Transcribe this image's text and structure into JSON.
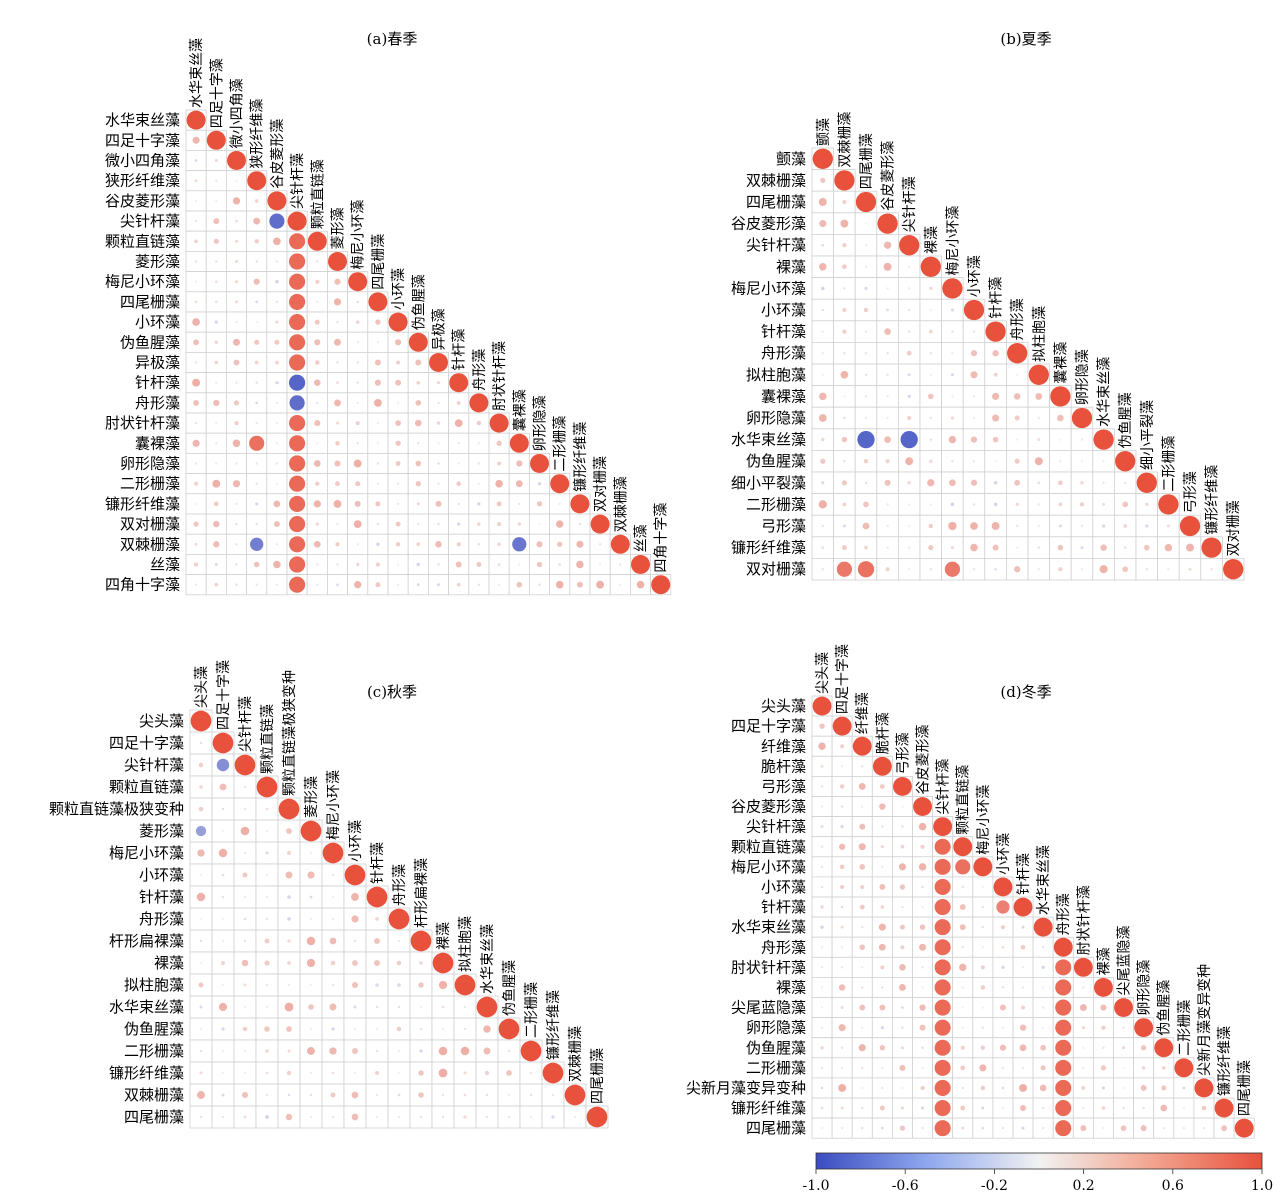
{
  "chart_data": [
    {
      "type": "heatmap",
      "title": "(a)春季",
      "labels": [
        "水华束丝藻",
        "四足十字藻",
        "微小四角藻",
        "狭形纤维藻",
        "谷皮菱形藻",
        "尖针杆藻",
        "颗粒直链藻",
        "菱形藻",
        "梅尼小环藻",
        "四尾栅藻",
        "小环藻",
        "伪鱼腥藻",
        "异极藻",
        "针杆藻",
        "舟形藻",
        "肘状针杆藻",
        "囊裸藻",
        "卵形隐藻",
        "二形栅藻",
        "镰形纤维藻",
        "双对栅藻",
        "双棘栅藻",
        "丝藻",
        "四角十字藻"
      ],
      "strong": [
        [
          5,
          4,
          -0.8
        ],
        [
          13,
          5,
          -0.85
        ],
        [
          14,
          5,
          -0.8
        ],
        [
          16,
          3,
          0.8
        ],
        [
          21,
          3,
          -0.7
        ],
        [
          21,
          16,
          -0.75
        ],
        [
          14,
          14,
          1
        ]
      ],
      "sig_cols": [
        5
      ],
      "note": "lower-triangle correlation matrix; column 尖针杆藻 mostly strong positive"
    },
    {
      "type": "heatmap",
      "title": "(b)夏季",
      "labels": [
        "颤藻",
        "双棘栅藻",
        "四尾栅藻",
        "谷皮菱形藻",
        "尖针杆藻",
        "裸藻",
        "梅尼小环藻",
        "小环藻",
        "针杆藻",
        "舟形藻",
        "拟柱胞藻",
        "囊裸藻",
        "卵形隐藻",
        "水华束丝藻",
        "伪鱼腥藻",
        "细小平裂藻",
        "二形栅藻",
        "弓形藻",
        "镰形纤维藻",
        "双对栅藻"
      ],
      "strong": [
        [
          13,
          2,
          -0.85
        ],
        [
          13,
          4,
          -0.85
        ],
        [
          19,
          1,
          0.75
        ],
        [
          19,
          2,
          0.8
        ],
        [
          19,
          6,
          0.75
        ]
      ],
      "sig_cols": [],
      "note": "lower-triangle correlation matrix"
    },
    {
      "type": "heatmap",
      "title": "(c)秋季",
      "labels": [
        "尖头藻",
        "四足十字藻",
        "尖针杆藻",
        "颗粒直链藻",
        "颗粒直链藻极狭变种",
        "菱形藻",
        "梅尼小环藻",
        "小环藻",
        "针杆藻",
        "舟形藻",
        "杆形扁裸藻",
        "裸藻",
        "拟柱胞藻",
        "水华束丝藻",
        "伪鱼腥藻",
        "二形栅藻",
        "镰形纤维藻",
        "双棘栅藻",
        "四尾栅藻"
      ],
      "strong": [
        [
          2,
          1,
          -0.6
        ],
        [
          5,
          0,
          -0.5
        ],
        [
          6,
          6,
          1
        ]
      ],
      "sig_cols": [],
      "note": "lower-triangle correlation matrix"
    },
    {
      "type": "heatmap",
      "title": "(d)冬季",
      "labels": [
        "尖头藻",
        "四足十字藻",
        "纤维藻",
        "脆杆藻",
        "弓形藻",
        "谷皮菱形藻",
        "尖针杆藻",
        "颗粒直链藻",
        "梅尼小环藻",
        "小环藻",
        "针杆藻",
        "水华束丝藻",
        "舟形藻",
        "肘状针杆藻",
        "裸藻",
        "尖尾蓝隐藻",
        "卵形隐藻",
        "伪鱼腥藻",
        "二形栅藻",
        "尖新月藻变异变种",
        "镰形纤维藻",
        "四尾栅藻"
      ],
      "strong": [
        [
          8,
          7,
          0.8
        ],
        [
          10,
          9,
          0.7
        ]
      ],
      "sig_cols": [
        6,
        12
      ],
      "note": "lower-triangle correlation matrix; column 尖针杆藻 strong positive"
    },
    {
      "type": "colorbar",
      "ticks": [
        "-1.0",
        "-0.6",
        "-0.2",
        "0.2",
        "0.6",
        "1.0"
      ],
      "low_color": "#3b4cc0",
      "mid_color": "#f2f2f2",
      "high_color": "#e8513c"
    }
  ]
}
